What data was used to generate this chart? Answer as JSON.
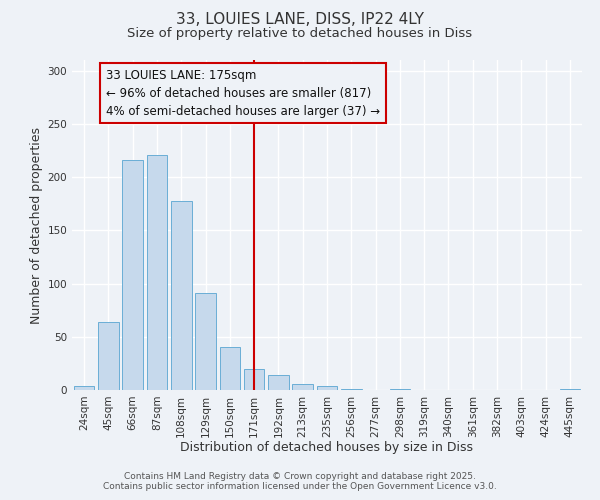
{
  "title": "33, LOUIES LANE, DISS, IP22 4LY",
  "subtitle": "Size of property relative to detached houses in Diss",
  "xlabel": "Distribution of detached houses by size in Diss",
  "ylabel": "Number of detached properties",
  "categories": [
    "24sqm",
    "45sqm",
    "66sqm",
    "87sqm",
    "108sqm",
    "129sqm",
    "150sqm",
    "171sqm",
    "192sqm",
    "213sqm",
    "235sqm",
    "256sqm",
    "277sqm",
    "298sqm",
    "319sqm",
    "340sqm",
    "361sqm",
    "382sqm",
    "403sqm",
    "424sqm",
    "445sqm"
  ],
  "bar_values": [
    4,
    64,
    216,
    221,
    178,
    91,
    40,
    20,
    14,
    6,
    4,
    1,
    0,
    1,
    0,
    0,
    0,
    0,
    0,
    0,
    1
  ],
  "bar_color": "#c6d9ec",
  "bar_edge_color": "#6aaed6",
  "ylim": [
    0,
    310
  ],
  "yticks": [
    0,
    50,
    100,
    150,
    200,
    250,
    300
  ],
  "vline_index": 7,
  "vline_color": "#cc0000",
  "annotation_title": "33 LOUIES LANE: 175sqm",
  "annotation_line1": "← 96% of detached houses are smaller (817)",
  "annotation_line2": "4% of semi-detached houses are larger (37) →",
  "annotation_box_edge_color": "#cc0000",
  "bg_color": "#eef2f7",
  "footer_line1": "Contains HM Land Registry data © Crown copyright and database right 2025.",
  "footer_line2": "Contains public sector information licensed under the Open Government Licence v3.0.",
  "title_fontsize": 11,
  "subtitle_fontsize": 9.5,
  "xlabel_fontsize": 9,
  "ylabel_fontsize": 9,
  "tick_fontsize": 7.5,
  "annotation_fontsize": 8.5,
  "footer_fontsize": 6.5
}
